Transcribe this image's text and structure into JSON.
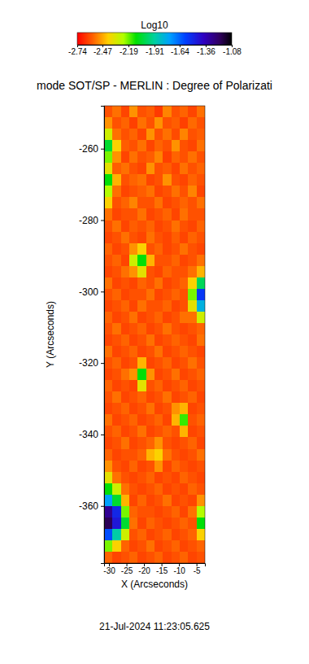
{
  "chart_data": {
    "type": "heatmap",
    "title": "mode SOT/SP - MERLIN : Degree of Polarizati",
    "x_label": "X (Arcseconds)",
    "y_label": "Y (Arcseconds)",
    "annotations": [
      "21-Jul-2024 11:23:05.625"
    ],
    "colorbar_title": "Log10",
    "colorbar_range": [
      -2.74,
      -1.08
    ],
    "colorbar_ticks": [
      -2.74,
      -2.47,
      -2.19,
      -1.91,
      -1.64,
      -1.36,
      -1.08
    ],
    "xlim": [
      -31.4,
      -2.6
    ],
    "ylim": [
      -248,
      -376
    ],
    "xticks": [
      -30,
      -25,
      -20,
      -15,
      -10,
      -5
    ],
    "yticks": [
      -260,
      -280,
      -300,
      -320,
      -340,
      -360
    ],
    "x": [
      -30.2,
      -27.8,
      -25.4,
      -23.0,
      -20.6,
      -18.2,
      -15.8,
      -13.4,
      -11.0,
      -8.6,
      -6.2,
      -3.8
    ],
    "y": [
      -249.6,
      -252.8,
      -256.0,
      -259.2,
      -262.4,
      -265.6,
      -268.8,
      -272.0,
      -275.2,
      -278.4,
      -281.6,
      -284.8,
      -288.0,
      -291.2,
      -294.4,
      -297.6,
      -300.8,
      -304.0,
      -307.2,
      -310.4,
      -313.6,
      -316.8,
      -320.0,
      -323.2,
      -326.4,
      -329.6,
      -332.8,
      -336.0,
      -339.2,
      -342.4,
      -345.6,
      -348.8,
      -352.0,
      -355.2,
      -358.4,
      -361.6,
      -364.8,
      -368.0,
      -371.2,
      -374.4
    ],
    "values": [
      [
        -2.6,
        -2.55,
        -2.62,
        -2.5,
        -2.6,
        -2.58,
        -2.64,
        -2.52,
        -2.6,
        -2.57,
        -2.62,
        -2.55
      ],
      [
        -2.5,
        -2.6,
        -2.57,
        -2.63,
        -2.55,
        -2.6,
        -2.5,
        -2.6,
        -2.58,
        -2.63,
        -2.56,
        -2.6
      ],
      [
        -2.3,
        -2.55,
        -2.6,
        -2.57,
        -2.62,
        -2.5,
        -2.6,
        -2.55,
        -2.61,
        -2.52,
        -2.6,
        -2.58
      ],
      [
        -2.05,
        -2.4,
        -2.58,
        -2.6,
        -2.55,
        -2.62,
        -2.57,
        -2.6,
        -2.5,
        -2.6,
        -2.62,
        -2.55
      ],
      [
        -2.2,
        -2.5,
        -2.62,
        -2.55,
        -2.6,
        -2.58,
        -2.52,
        -2.63,
        -2.57,
        -2.6,
        -2.55,
        -2.6
      ],
      [
        -2.35,
        -2.58,
        -2.55,
        -2.6,
        -2.62,
        -2.5,
        -2.6,
        -2.58,
        -2.62,
        -2.55,
        -2.6,
        -2.57
      ],
      [
        -2.1,
        -2.45,
        -2.6,
        -2.57,
        -2.55,
        -2.62,
        -2.6,
        -2.5,
        -2.6,
        -2.62,
        -2.57,
        -2.6
      ],
      [
        -2.25,
        -2.55,
        -2.62,
        -2.6,
        -2.58,
        -2.55,
        -2.62,
        -2.6,
        -2.55,
        -2.6,
        -2.52,
        -2.62
      ],
      [
        -2.4,
        -2.6,
        -2.57,
        -2.52,
        -2.6,
        -2.6,
        -2.55,
        -2.62,
        -2.6,
        -2.57,
        -2.6,
        -2.55
      ],
      [
        -2.55,
        -2.62,
        -2.6,
        -2.6,
        -2.55,
        -2.62,
        -2.6,
        -2.57,
        -2.62,
        -2.55,
        -2.6,
        -2.6
      ],
      [
        -2.6,
        -2.55,
        -2.62,
        -2.58,
        -2.6,
        -2.57,
        -2.62,
        -2.6,
        -2.55,
        -2.6,
        -2.62,
        -2.57
      ],
      [
        -2.62,
        -2.6,
        -2.55,
        -2.6,
        -2.62,
        -2.55,
        -2.6,
        -2.62,
        -2.58,
        -2.62,
        -2.57,
        -2.6
      ],
      [
        -2.57,
        -2.62,
        -2.6,
        -2.5,
        -2.4,
        -2.6,
        -2.57,
        -2.62,
        -2.6,
        -2.55,
        -2.6,
        -2.62
      ],
      [
        -2.6,
        -2.57,
        -2.62,
        -2.3,
        -2.1,
        -2.45,
        -2.6,
        -2.6,
        -2.57,
        -2.62,
        -2.6,
        -2.55
      ],
      [
        -2.62,
        -2.6,
        -2.55,
        -2.5,
        -2.35,
        -2.6,
        -2.62,
        -2.57,
        -2.6,
        -2.6,
        -2.55,
        -2.45
      ],
      [
        -2.55,
        -2.62,
        -2.6,
        -2.62,
        -2.57,
        -2.6,
        -2.55,
        -2.62,
        -2.6,
        -2.57,
        -2.4,
        -2.0
      ],
      [
        -2.6,
        -2.57,
        -2.62,
        -2.6,
        -2.6,
        -2.55,
        -2.62,
        -2.6,
        -2.57,
        -2.6,
        -2.2,
        -1.55
      ],
      [
        -2.62,
        -2.6,
        -2.57,
        -2.62,
        -2.55,
        -2.6,
        -2.6,
        -2.57,
        -2.62,
        -2.6,
        -2.35,
        -1.8
      ],
      [
        -2.57,
        -2.62,
        -2.6,
        -2.55,
        -2.62,
        -2.6,
        -2.57,
        -2.62,
        -2.6,
        -2.55,
        -2.55,
        -2.3
      ],
      [
        -2.6,
        -2.55,
        -2.62,
        -2.6,
        -2.57,
        -2.62,
        -2.6,
        -2.55,
        -2.6,
        -2.62,
        -2.6,
        -2.57
      ],
      [
        -2.62,
        -2.6,
        -2.57,
        -2.62,
        -2.6,
        -2.55,
        -2.62,
        -2.6,
        -2.57,
        -2.6,
        -2.62,
        -2.55
      ],
      [
        -2.55,
        -2.62,
        -2.6,
        -2.57,
        -2.62,
        -2.6,
        -2.55,
        -2.62,
        -2.6,
        -2.57,
        -2.6,
        -2.62
      ],
      [
        -2.6,
        -2.57,
        -2.62,
        -2.6,
        -2.45,
        -2.62,
        -2.6,
        -2.57,
        -2.62,
        -2.6,
        -2.55,
        -2.6
      ],
      [
        -2.62,
        -2.6,
        -2.55,
        -2.5,
        -2.1,
        -2.5,
        -2.62,
        -2.6,
        -2.55,
        -2.62,
        -2.6,
        -2.57
      ],
      [
        -2.57,
        -2.62,
        -2.6,
        -2.62,
        -2.35,
        -2.6,
        -2.57,
        -2.62,
        -2.6,
        -2.57,
        -2.62,
        -2.6
      ],
      [
        -2.6,
        -2.55,
        -2.62,
        -2.6,
        -2.57,
        -2.62,
        -2.6,
        -2.55,
        -2.62,
        -2.6,
        -2.57,
        -2.62
      ],
      [
        -2.62,
        -2.6,
        -2.57,
        -2.62,
        -2.6,
        -2.55,
        -2.62,
        -2.6,
        -2.5,
        -2.45,
        -2.62,
        -2.6
      ],
      [
        -2.55,
        -2.62,
        -2.6,
        -2.57,
        -2.62,
        -2.6,
        -2.57,
        -2.62,
        -2.45,
        -2.15,
        -2.6,
        -2.57
      ],
      [
        -2.6,
        -2.57,
        -2.62,
        -2.6,
        -2.55,
        -2.62,
        -2.6,
        -2.57,
        -2.6,
        -2.45,
        -2.62,
        -2.6
      ],
      [
        -2.62,
        -2.6,
        -2.55,
        -2.62,
        -2.6,
        -2.57,
        -2.5,
        -2.6,
        -2.62,
        -2.6,
        -2.57,
        -2.62
      ],
      [
        -2.57,
        -2.62,
        -2.6,
        -2.6,
        -2.57,
        -2.45,
        -2.4,
        -2.55,
        -2.6,
        -2.62,
        -2.6,
        -2.55
      ],
      [
        -2.5,
        -2.6,
        -2.62,
        -2.57,
        -2.62,
        -2.6,
        -2.5,
        -2.62,
        -2.57,
        -2.6,
        -2.62,
        -2.6
      ],
      [
        -2.35,
        -2.55,
        -2.6,
        -2.62,
        -2.6,
        -2.57,
        -2.62,
        -2.6,
        -2.62,
        -2.57,
        -2.6,
        -2.62
      ],
      [
        -2.1,
        -2.3,
        -2.55,
        -2.6,
        -2.62,
        -2.6,
        -2.57,
        -2.62,
        -2.6,
        -2.62,
        -2.57,
        -2.6
      ],
      [
        -1.75,
        -2.05,
        -2.45,
        -2.62,
        -2.57,
        -2.62,
        -2.6,
        -2.55,
        -2.62,
        -2.6,
        -2.62,
        -2.5
      ],
      [
        -1.3,
        -1.5,
        -2.2,
        -2.57,
        -2.6,
        -2.6,
        -2.62,
        -2.6,
        -2.57,
        -2.62,
        -2.55,
        -2.25
      ],
      [
        -1.2,
        -1.45,
        -2.05,
        -2.55,
        -2.62,
        -2.57,
        -2.6,
        -2.62,
        -2.6,
        -2.57,
        -2.6,
        -2.1
      ],
      [
        -1.6,
        -1.9,
        -2.3,
        -2.6,
        -2.57,
        -2.62,
        -2.6,
        -2.57,
        -2.62,
        -2.6,
        -2.57,
        -2.4
      ],
      [
        -2.2,
        -2.4,
        -2.57,
        -2.62,
        -2.6,
        -2.55,
        -2.62,
        -2.6,
        -2.57,
        -2.62,
        -2.6,
        -2.57
      ],
      [
        -2.57,
        -2.62,
        -2.6,
        -2.57,
        -2.62,
        -2.6,
        -2.57,
        -2.62,
        -2.6,
        -2.57,
        -2.62,
        -2.6
      ]
    ]
  }
}
